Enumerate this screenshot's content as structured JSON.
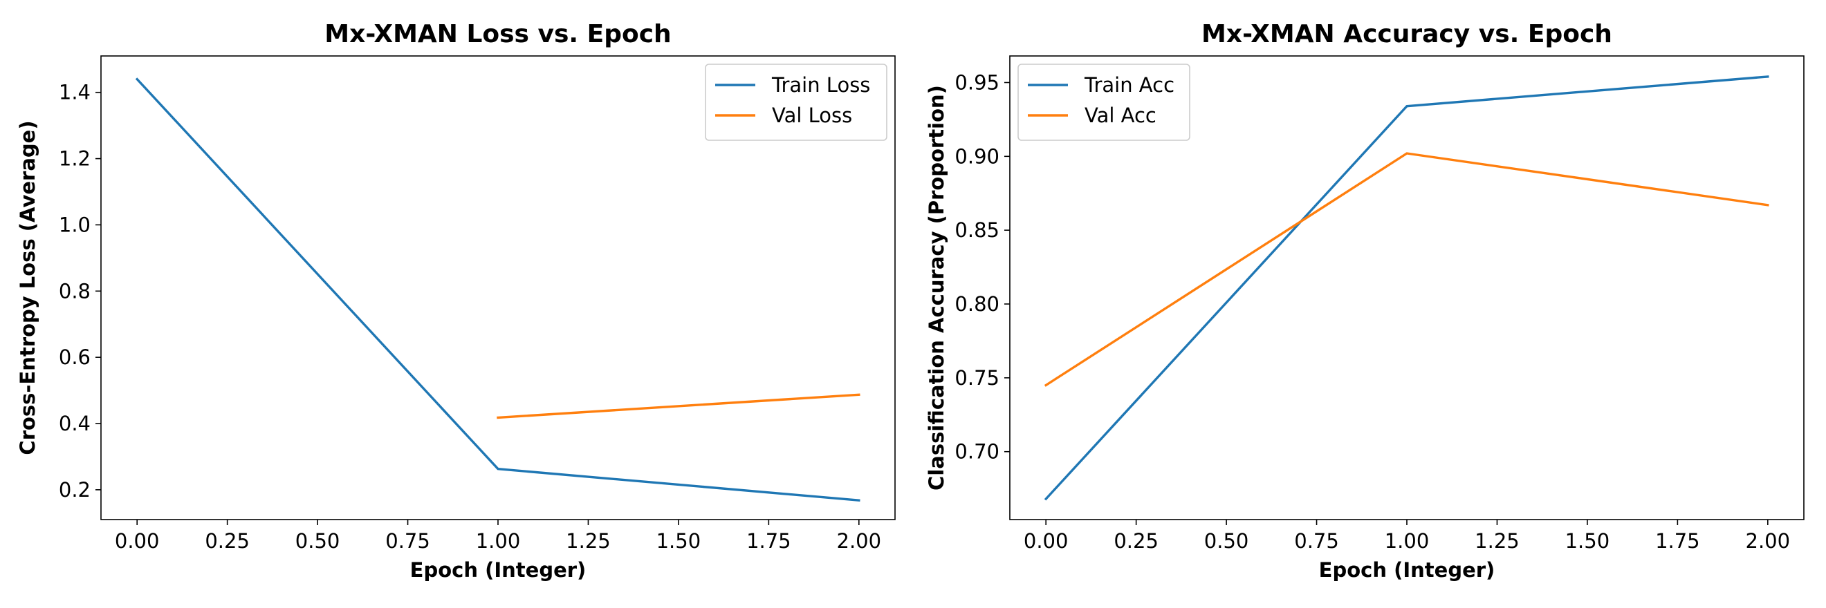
{
  "chart_data": [
    {
      "type": "line",
      "title": "Mx-XMAN Loss vs. Epoch",
      "xlabel": "Epoch (Integer)",
      "ylabel": "Cross-Entropy Loss (Average)",
      "xlim": [
        -0.1,
        2.1
      ],
      "ylim": [
        0.11,
        1.51
      ],
      "xticks": [
        "0.00",
        "0.25",
        "0.50",
        "0.75",
        "1.00",
        "1.25",
        "1.50",
        "1.75",
        "2.00"
      ],
      "yticks": [
        "0.2",
        "0.4",
        "0.6",
        "0.8",
        "1.0",
        "1.2",
        "1.4"
      ],
      "grid": false,
      "legend_position": "upper right",
      "series": [
        {
          "name": "Train Loss",
          "color": "#1f77b4",
          "x": [
            0,
            1,
            2
          ],
          "y": [
            1.44,
            0.263,
            0.168
          ]
        },
        {
          "name": "Val Loss",
          "color": "#ff7f0e",
          "x": [
            1,
            2
          ],
          "y": [
            0.418,
            0.487
          ]
        }
      ]
    },
    {
      "type": "line",
      "title": "Mx-XMAN Accuracy vs. Epoch",
      "xlabel": "Epoch (Integer)",
      "ylabel": "Classification Accuracy (Proportion)",
      "xlim": [
        -0.1,
        2.1
      ],
      "ylim": [
        0.654,
        0.968
      ],
      "xticks": [
        "0.00",
        "0.25",
        "0.50",
        "0.75",
        "1.00",
        "1.25",
        "1.50",
        "1.75",
        "2.00"
      ],
      "yticks": [
        "0.70",
        "0.75",
        "0.80",
        "0.85",
        "0.90",
        "0.95"
      ],
      "grid": false,
      "legend_position": "upper left",
      "series": [
        {
          "name": "Train Acc",
          "color": "#1f77b4",
          "x": [
            0,
            1,
            2
          ],
          "y": [
            0.668,
            0.934,
            0.954
          ]
        },
        {
          "name": "Val Acc",
          "color": "#ff7f0e",
          "x": [
            0,
            1,
            2
          ],
          "y": [
            0.745,
            0.902,
            0.867
          ]
        }
      ]
    }
  ]
}
